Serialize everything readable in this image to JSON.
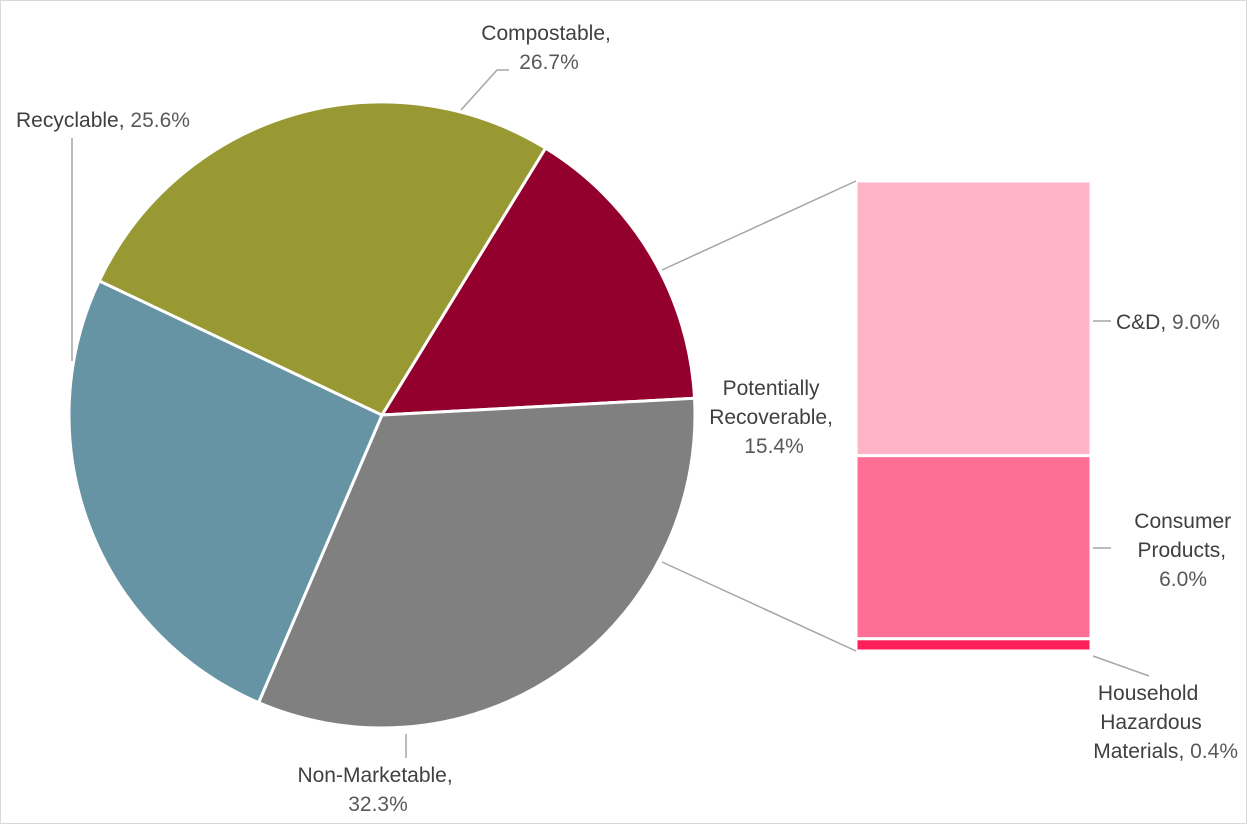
{
  "chart_data": {
    "type": "pie",
    "subtype": "bar-of-pie",
    "pie": {
      "slices": [
        {
          "name": "Potentially Recoverable",
          "value": 15.4,
          "label": "15.4%",
          "color": "#93002d"
        },
        {
          "name": "Non-Marketable",
          "value": 32.3,
          "label": "32.3%",
          "color": "#808080"
        },
        {
          "name": "Recyclable",
          "value": 25.6,
          "label": "25.6%",
          "color": "#6794a4"
        },
        {
          "name": "Compostable",
          "value": 26.7,
          "label": "26.7%",
          "color": "#999933"
        }
      ]
    },
    "bar": {
      "parent": "Potentially Recoverable",
      "segments": [
        {
          "name": "C&D",
          "value": 9.0,
          "label": "9.0%",
          "color": "#ffb3c7"
        },
        {
          "name": "Consumer Products",
          "value": 6.0,
          "label": "6.0%",
          "color": "#ff6e95"
        },
        {
          "name": "Household Hazardous Materials",
          "value": 0.4,
          "label": "0.4%",
          "color": "#ff1f5a"
        }
      ]
    },
    "legend": "none",
    "separator_color": "#ffffff",
    "leader_color": "#a6a6a6"
  },
  "labels": {
    "compostable": {
      "line1": "Compostable,",
      "value": "26.7%"
    },
    "recyclable": {
      "category": "Recyclable",
      "sep": ",",
      "value": "25.6%"
    },
    "potentially_recoverable": {
      "line1": "Potentially",
      "line2": "Recoverable,",
      "value": "15.4%"
    },
    "non_marketable": {
      "line1": "Non-Marketable,",
      "value": "32.3%"
    },
    "cd": {
      "category": "C&D",
      "sep": ",",
      "value": "9.0%"
    },
    "consumer_products": {
      "line1": "Consumer",
      "line2": "Products,",
      "value": "6.0%"
    },
    "household_hazardous": {
      "line1": "Household",
      "line2": "Hazardous",
      "line3": "Materials",
      "sep": ",",
      "value": "0.4%"
    }
  }
}
